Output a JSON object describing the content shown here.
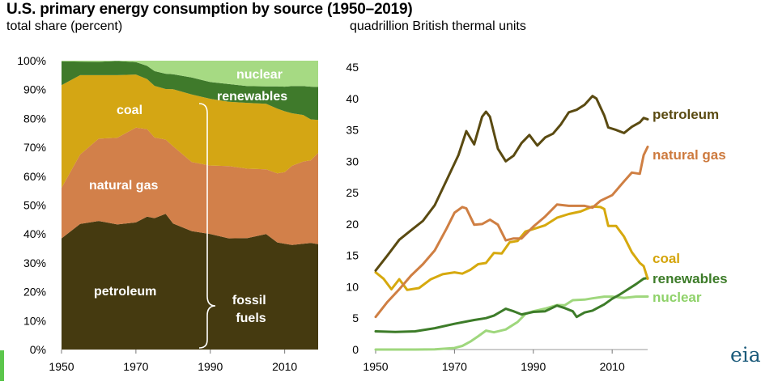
{
  "title": "U.S. primary energy consumption by source (1950–2019)",
  "logo_text": "eia",
  "colors": {
    "petroleum_area": "#453a10",
    "natural_gas_area": "#d2804a",
    "coal_area": "#d4a614",
    "renewables_area": "#3f7a2b",
    "nuclear_area": "#a6da83",
    "petroleum_line": "#5a4a11",
    "natural_gas_line": "#cf7f43",
    "coal_line": "#d6a90e",
    "renewables_line": "#3d7c29",
    "nuclear_line": "#9fd77d",
    "petroleum_label": "#5a4a11",
    "natural_gas_label": "#cd7a3e",
    "coal_label": "#d4a40a",
    "renewables_label": "#3d7c29",
    "nuclear_label": "#8fd26a",
    "corner_mark": "#5cc64c",
    "logo": "#1a5a7a"
  },
  "chart_data": [
    {
      "type": "area",
      "subtitle": "total share (percent)",
      "stacked": true,
      "x_ticks": [
        "1950",
        "1970",
        "1990",
        "2010"
      ],
      "y_ticks": [
        "0%",
        "10%",
        "20%",
        "30%",
        "40%",
        "50%",
        "60%",
        "70%",
        "80%",
        "90%",
        "100%"
      ],
      "ylim": [
        0,
        100
      ],
      "xlim": [
        1950,
        2019
      ],
      "x": [
        1950,
        1955,
        1960,
        1965,
        1970,
        1973,
        1975,
        1978,
        1980,
        1985,
        1990,
        1995,
        2000,
        2005,
        2008,
        2010,
        2012,
        2015,
        2017,
        2019
      ],
      "series": [
        {
          "name": "petroleum",
          "values": [
            38.5,
            43.5,
            44.5,
            43.3,
            44.0,
            46.0,
            45.5,
            47.0,
            43.6,
            41.0,
            40.0,
            38.5,
            38.6,
            40.0,
            37.1,
            36.6,
            36.2,
            36.6,
            36.9,
            36.5
          ]
        },
        {
          "name": "natural gas",
          "values": [
            17.5,
            24.0,
            28.5,
            30.0,
            32.8,
            30.3,
            27.9,
            25.7,
            26.8,
            23.9,
            23.7,
            25.0,
            24.0,
            22.4,
            23.9,
            24.8,
            27.4,
            28.5,
            28.6,
            31.6
          ]
        },
        {
          "name": "coal",
          "values": [
            35.5,
            27.5,
            22.0,
            21.7,
            18.4,
            17.3,
            17.9,
            17.5,
            19.7,
            23.4,
            23.1,
            22.3,
            22.8,
            22.7,
            22.4,
            21.1,
            18.2,
            16.1,
            14.2,
            11.4
          ]
        },
        {
          "name": "renewables",
          "values": [
            8.3,
            4.7,
            4.6,
            4.9,
            4.3,
            4.6,
            5.1,
            5.3,
            5.2,
            5.9,
            5.8,
            6.1,
            5.8,
            6.0,
            7.7,
            8.5,
            9.4,
            10.0,
            11.3,
            11.4
          ]
        },
        {
          "name": "nuclear",
          "values": [
            0.2,
            0.3,
            0.4,
            0.1,
            0.5,
            1.8,
            3.6,
            4.5,
            4.7,
            5.8,
            7.4,
            8.1,
            8.8,
            8.9,
            8.9,
            9.0,
            8.8,
            8.8,
            9.0,
            9.1
          ]
        }
      ],
      "annotations": [
        "fossil fuels"
      ]
    },
    {
      "type": "line",
      "subtitle": "quadrillion British thermal units",
      "x_ticks": [
        "1950",
        "1970",
        "1990",
        "2010"
      ],
      "y_ticks": [
        "0",
        "5",
        "10",
        "15",
        "20",
        "25",
        "30",
        "35",
        "40",
        "45"
      ],
      "ylim": [
        0,
        45
      ],
      "xlim": [
        1950,
        2019
      ],
      "series": [
        {
          "name": "petroleum",
          "x": [
            1950,
            1953,
            1956,
            1959,
            1962,
            1965,
            1968,
            1971,
            1973,
            1975,
            1977,
            1978,
            1979,
            1981,
            1983,
            1985,
            1987,
            1989,
            1991,
            1993,
            1995,
            1997,
            1999,
            2001,
            2003,
            2005,
            2006,
            2008,
            2009,
            2011,
            2013,
            2015,
            2017,
            2018,
            2019
          ],
          "values": [
            12.6,
            15.0,
            17.5,
            19.0,
            20.5,
            23.0,
            27.0,
            31.0,
            34.8,
            32.7,
            37.1,
            37.9,
            37.1,
            32.0,
            30.0,
            30.9,
            32.9,
            34.2,
            32.5,
            33.8,
            34.4,
            35.9,
            37.8,
            38.2,
            39.0,
            40.4,
            40.0,
            37.3,
            35.4,
            35.0,
            34.5,
            35.5,
            36.2,
            36.9,
            36.7
          ]
        },
        {
          "name": "natural gas",
          "x": [
            1950,
            1953,
            1956,
            1959,
            1962,
            1965,
            1968,
            1970,
            1972,
            1973,
            1975,
            1977,
            1979,
            1981,
            1983,
            1985,
            1987,
            1990,
            1993,
            1996,
            1999,
            2001,
            2003,
            2005,
            2007,
            2010,
            2013,
            2015,
            2017,
            2018,
            2019
          ],
          "values": [
            5.2,
            7.6,
            9.6,
            11.8,
            13.6,
            15.8,
            19.3,
            21.8,
            22.7,
            22.5,
            19.9,
            20.0,
            20.7,
            19.9,
            17.4,
            17.7,
            17.7,
            19.6,
            21.2,
            23.1,
            22.9,
            22.9,
            22.9,
            22.6,
            23.7,
            24.6,
            26.8,
            28.2,
            28.0,
            31.0,
            32.3
          ]
        },
        {
          "name": "coal",
          "x": [
            1950,
            1952,
            1954,
            1956,
            1958,
            1961,
            1964,
            1967,
            1970,
            1972,
            1974,
            1976,
            1978,
            1980,
            1982,
            1984,
            1986,
            1988,
            1990,
            1993,
            1996,
            1999,
            2002,
            2005,
            2007,
            2008,
            2009,
            2011,
            2013,
            2015,
            2017,
            2018,
            2019
          ],
          "values": [
            12.3,
            11.3,
            9.6,
            11.2,
            9.5,
            9.8,
            11.2,
            12.0,
            12.3,
            12.1,
            12.7,
            13.6,
            13.8,
            15.4,
            15.3,
            17.1,
            17.3,
            18.8,
            19.2,
            19.8,
            21.0,
            21.6,
            22.0,
            22.8,
            22.7,
            22.4,
            19.7,
            19.7,
            18.0,
            15.5,
            13.8,
            13.3,
            11.3
          ]
        },
        {
          "name": "renewables",
          "x": [
            1950,
            1955,
            1960,
            1965,
            1970,
            1975,
            1978,
            1980,
            1983,
            1985,
            1987,
            1990,
            1993,
            1996,
            1998,
            2000,
            2001,
            2003,
            2005,
            2008,
            2010,
            2012,
            2014,
            2016,
            2018,
            2019
          ],
          "values": [
            2.9,
            2.8,
            2.9,
            3.4,
            4.1,
            4.7,
            5.0,
            5.4,
            6.5,
            6.1,
            5.6,
            6.0,
            6.1,
            7.0,
            6.6,
            6.1,
            5.2,
            5.9,
            6.2,
            7.2,
            8.1,
            8.8,
            9.6,
            10.4,
            11.3,
            11.4
          ]
        },
        {
          "name": "nuclear",
          "x": [
            1950,
            1955,
            1960,
            1965,
            1968,
            1970,
            1972,
            1974,
            1976,
            1978,
            1980,
            1983,
            1986,
            1988,
            1990,
            1993,
            1996,
            1998,
            2000,
            2003,
            2005,
            2008,
            2010,
            2013,
            2016,
            2019
          ],
          "values": [
            0.0,
            0.0,
            0.0,
            0.04,
            0.15,
            0.24,
            0.58,
            1.27,
            2.11,
            3.02,
            2.74,
            3.2,
            4.38,
            5.66,
            6.1,
            6.52,
            7.09,
            7.07,
            7.86,
            7.96,
            8.16,
            8.43,
            8.43,
            8.24,
            8.43,
            8.45
          ]
        }
      ]
    }
  ]
}
